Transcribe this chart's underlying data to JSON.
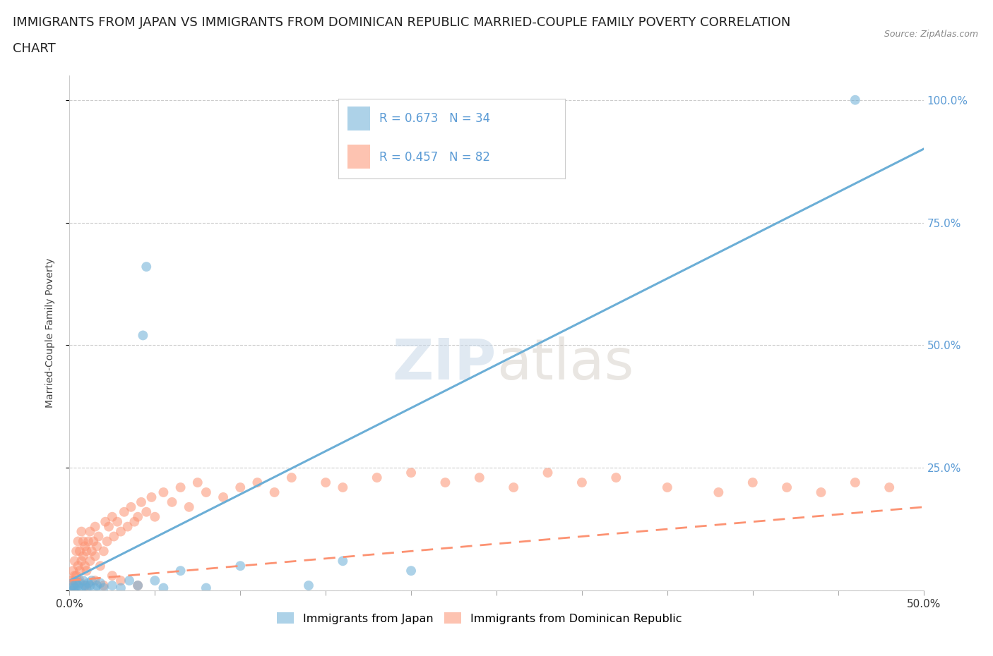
{
  "title_line1": "IMMIGRANTS FROM JAPAN VS IMMIGRANTS FROM DOMINICAN REPUBLIC MARRIED-COUPLE FAMILY POVERTY CORRELATION",
  "title_line2": "CHART",
  "source": "Source: ZipAtlas.com",
  "ylabel": "Married-Couple Family Poverty",
  "xlim": [
    0.0,
    0.5
  ],
  "ylim": [
    0.0,
    1.05
  ],
  "ytick_labels": [
    "",
    "25.0%",
    "50.0%",
    "75.0%",
    "100.0%"
  ],
  "yticks": [
    0.0,
    0.25,
    0.5,
    0.75,
    1.0
  ],
  "watermark_zip": "ZIP",
  "watermark_atlas": "atlas",
  "japan_color": "#6baed6",
  "dr_color": "#fc9272",
  "japan_R": 0.673,
  "japan_N": 34,
  "dr_R": 0.457,
  "dr_N": 82,
  "japan_x": [
    0.001,
    0.002,
    0.002,
    0.003,
    0.004,
    0.005,
    0.005,
    0.006,
    0.007,
    0.008,
    0.009,
    0.01,
    0.011,
    0.012,
    0.013,
    0.015,
    0.016,
    0.018,
    0.02,
    0.025,
    0.03,
    0.035,
    0.04,
    0.043,
    0.045,
    0.05,
    0.055,
    0.065,
    0.08,
    0.1,
    0.14,
    0.16,
    0.2,
    0.46
  ],
  "japan_y": [
    0.005,
    0.01,
    0.0,
    0.005,
    0.015,
    0.01,
    0.0,
    0.015,
    0.005,
    0.02,
    0.01,
    0.005,
    0.015,
    0.01,
    0.02,
    0.005,
    0.01,
    0.015,
    0.005,
    0.01,
    0.005,
    0.02,
    0.01,
    0.52,
    0.66,
    0.02,
    0.005,
    0.04,
    0.005,
    0.05,
    0.01,
    0.06,
    0.04,
    1.0
  ],
  "dr_x": [
    0.001,
    0.002,
    0.002,
    0.003,
    0.003,
    0.004,
    0.004,
    0.005,
    0.005,
    0.006,
    0.006,
    0.007,
    0.007,
    0.008,
    0.008,
    0.009,
    0.009,
    0.01,
    0.01,
    0.011,
    0.012,
    0.012,
    0.013,
    0.014,
    0.015,
    0.015,
    0.016,
    0.017,
    0.018,
    0.02,
    0.021,
    0.022,
    0.023,
    0.025,
    0.026,
    0.028,
    0.03,
    0.032,
    0.034,
    0.036,
    0.038,
    0.04,
    0.042,
    0.045,
    0.048,
    0.05,
    0.055,
    0.06,
    0.065,
    0.07,
    0.075,
    0.08,
    0.09,
    0.1,
    0.11,
    0.12,
    0.13,
    0.15,
    0.16,
    0.18,
    0.2,
    0.22,
    0.24,
    0.26,
    0.28,
    0.3,
    0.32,
    0.35,
    0.38,
    0.4,
    0.42,
    0.44,
    0.46,
    0.48,
    0.003,
    0.006,
    0.01,
    0.015,
    0.02,
    0.025,
    0.03,
    0.04
  ],
  "dr_y": [
    0.02,
    0.04,
    0.01,
    0.06,
    0.02,
    0.03,
    0.08,
    0.05,
    0.1,
    0.04,
    0.08,
    0.06,
    0.12,
    0.07,
    0.1,
    0.05,
    0.09,
    0.08,
    0.04,
    0.1,
    0.06,
    0.12,
    0.08,
    0.1,
    0.07,
    0.13,
    0.09,
    0.11,
    0.05,
    0.08,
    0.14,
    0.1,
    0.13,
    0.15,
    0.11,
    0.14,
    0.12,
    0.16,
    0.13,
    0.17,
    0.14,
    0.15,
    0.18,
    0.16,
    0.19,
    0.15,
    0.2,
    0.18,
    0.21,
    0.17,
    0.22,
    0.2,
    0.19,
    0.21,
    0.22,
    0.2,
    0.23,
    0.22,
    0.21,
    0.23,
    0.24,
    0.22,
    0.23,
    0.21,
    0.24,
    0.22,
    0.23,
    0.21,
    0.2,
    0.22,
    0.21,
    0.2,
    0.22,
    0.21,
    0.03,
    0.02,
    0.01,
    0.02,
    0.01,
    0.03,
    0.02,
    0.01
  ],
  "background_color": "#ffffff",
  "grid_color": "#cccccc",
  "title_fontsize": 13,
  "axis_fontsize": 10,
  "tick_fontsize": 11,
  "right_tick_color": "#5b9bd5"
}
